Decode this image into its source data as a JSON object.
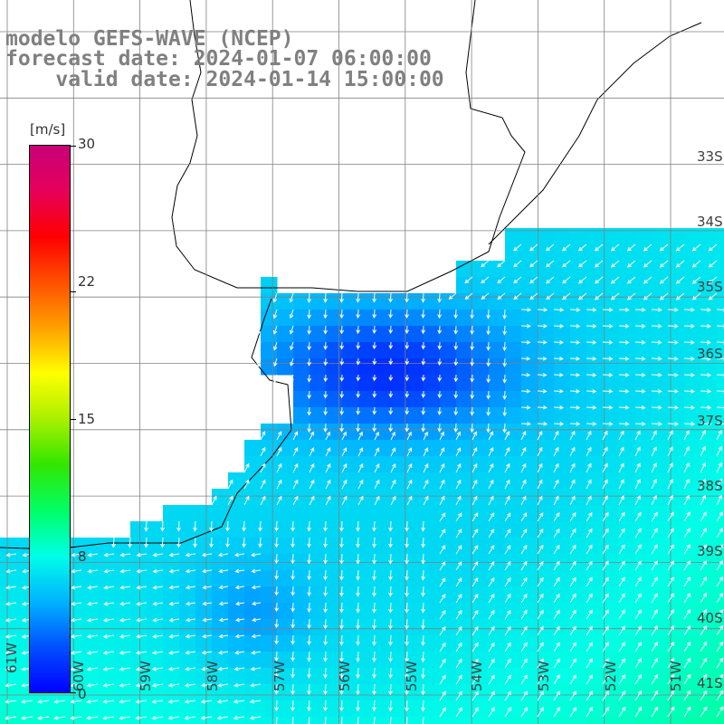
{
  "header": {
    "title": "modelo GEFS-WAVE (NCEP)",
    "forecast": "forecast date: 2024-01-07 06:00:00",
    "valid": "    valid date: 2024-01-14 15:00:00"
  },
  "colorbar": {
    "unit": "[m/s]",
    "ticks": [
      "30",
      "22",
      "15",
      "8",
      "0"
    ],
    "tick_values": [
      30,
      22,
      15,
      8,
      0
    ],
    "range": [
      0,
      30
    ],
    "colors": [
      "#0000ff",
      "#0050ff",
      "#00b4ff",
      "#00ffe6",
      "#00ff64",
      "#32e600",
      "#aaf000",
      "#ffff00",
      "#ffa000",
      "#ff5000",
      "#ff0000",
      "#e6005a",
      "#c80078"
    ]
  },
  "map": {
    "lon_labels": [
      "61W",
      "60W",
      "59W",
      "58W",
      "57W",
      "56W",
      "55W",
      "54W",
      "53W",
      "52W",
      "51W"
    ],
    "lat_labels": [
      "33S",
      "34S",
      "35S",
      "36S",
      "37S",
      "38S",
      "39S",
      "40S",
      "41S"
    ],
    "land_color": "#ffffff",
    "grid_color": "#808080"
  },
  "chart_data": {
    "type": "heatmap",
    "variable": "wind speed and direction",
    "unit": "m/s",
    "value_range": [
      0,
      30
    ],
    "approx_fields": [
      {
        "region": "bay interior / Rio de la Plata outer estuary",
        "speed_approx": 2
      },
      {
        "region": "open ocean east",
        "speed_approx": 6
      },
      {
        "region": "southwest coastal shelf",
        "speed_approx": 8
      },
      {
        "region": "southeast corner",
        "speed_approx": 9
      }
    ]
  }
}
